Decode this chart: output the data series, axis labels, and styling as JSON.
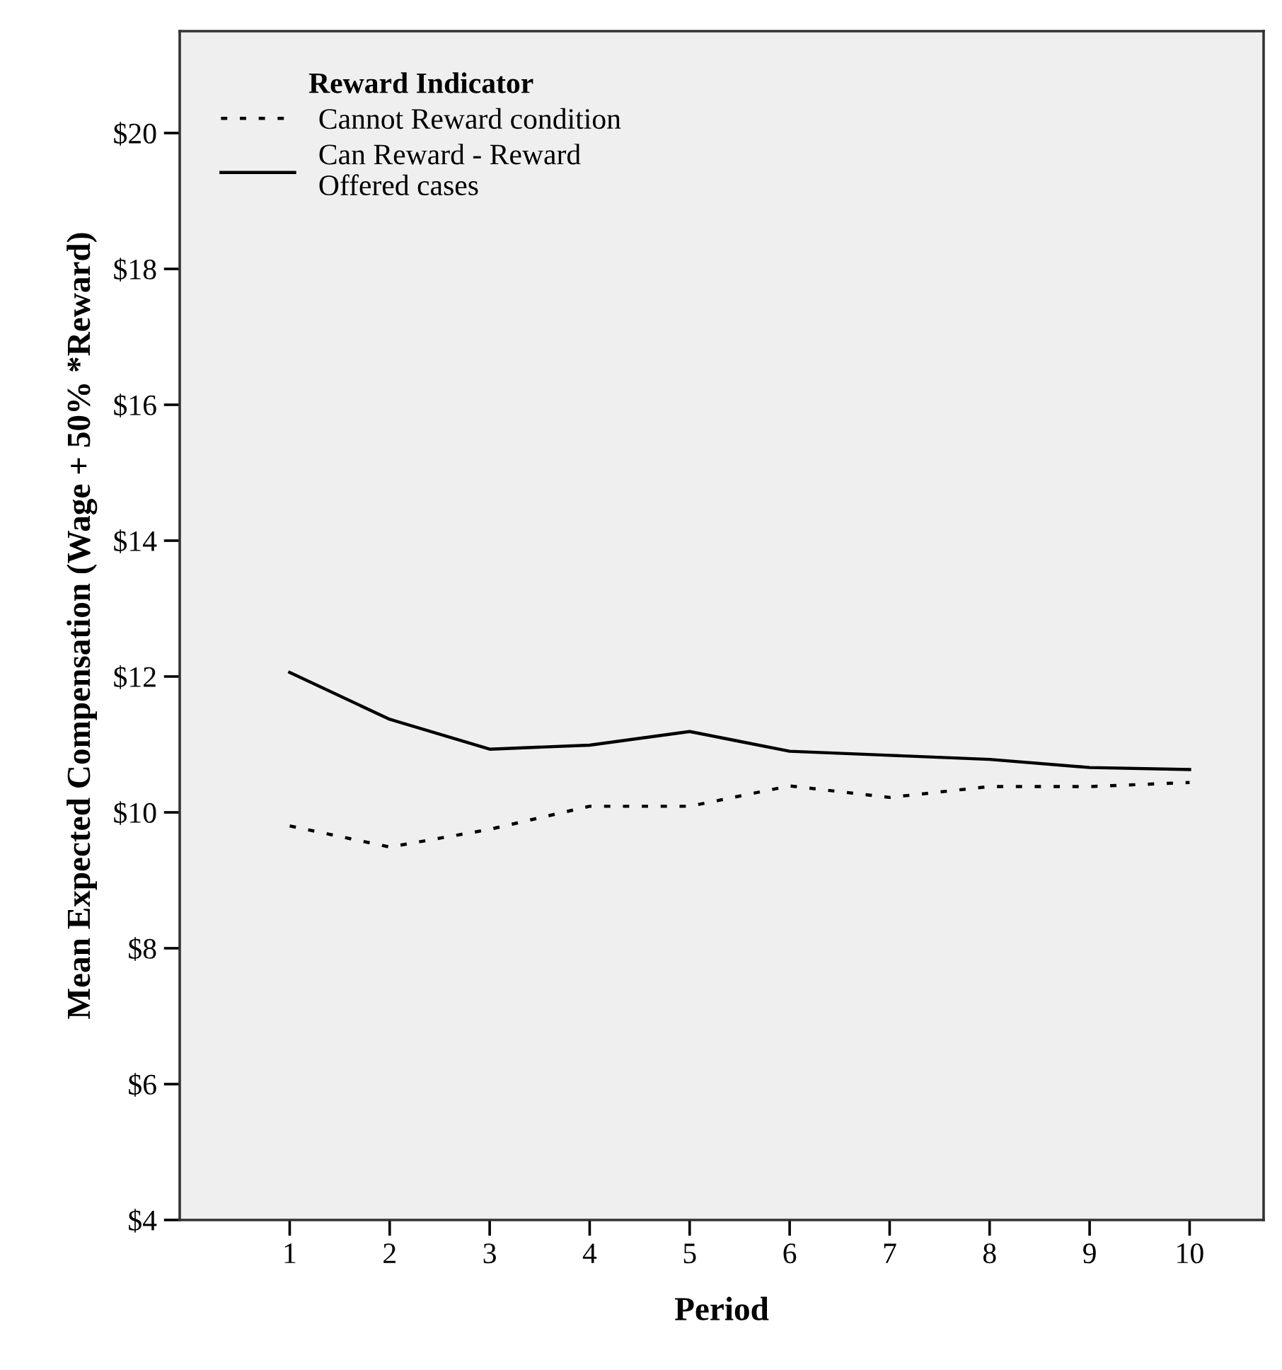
{
  "chart_data": {
    "type": "line",
    "xlabel": "Period",
    "ylabel": "Mean Expected Compensation (Wage + 50% *Reward)",
    "legend_title": "Reward Indicator",
    "x": [
      1,
      2,
      3,
      4,
      5,
      6,
      7,
      8,
      9,
      10
    ],
    "xlim": [
      -0.1,
      10.74
    ],
    "xticks": [
      1,
      2,
      3,
      4,
      5,
      6,
      7,
      8,
      9,
      10
    ],
    "ylim": [
      4,
      21.5
    ],
    "yticks": [
      {
        "value": 4,
        "label": "$4"
      },
      {
        "value": 6,
        "label": "$6"
      },
      {
        "value": 8,
        "label": "$8"
      },
      {
        "value": 10,
        "label": "$10"
      },
      {
        "value": 12,
        "label": "$12"
      },
      {
        "value": 14,
        "label": "$14"
      },
      {
        "value": 16,
        "label": "$16"
      },
      {
        "value": 18,
        "label": "$18"
      },
      {
        "value": 20,
        "label": "$20"
      }
    ],
    "grid": false,
    "legend": "top left",
    "marker": "none",
    "series": [
      {
        "name": "Cannot Reward condition",
        "color": "#000000",
        "line_style": "dotted",
        "values": [
          9.8,
          9.49,
          9.75,
          10.09,
          10.09,
          10.39,
          10.22,
          10.38,
          10.38,
          10.44
        ]
      },
      {
        "name": "Can Reward - Reward\nOffered cases",
        "color": "#000000",
        "line_style": "solid",
        "values": [
          12.06,
          11.37,
          10.93,
          10.99,
          11.19,
          10.9,
          10.84,
          10.78,
          10.66,
          10.63
        ]
      }
    ]
  }
}
